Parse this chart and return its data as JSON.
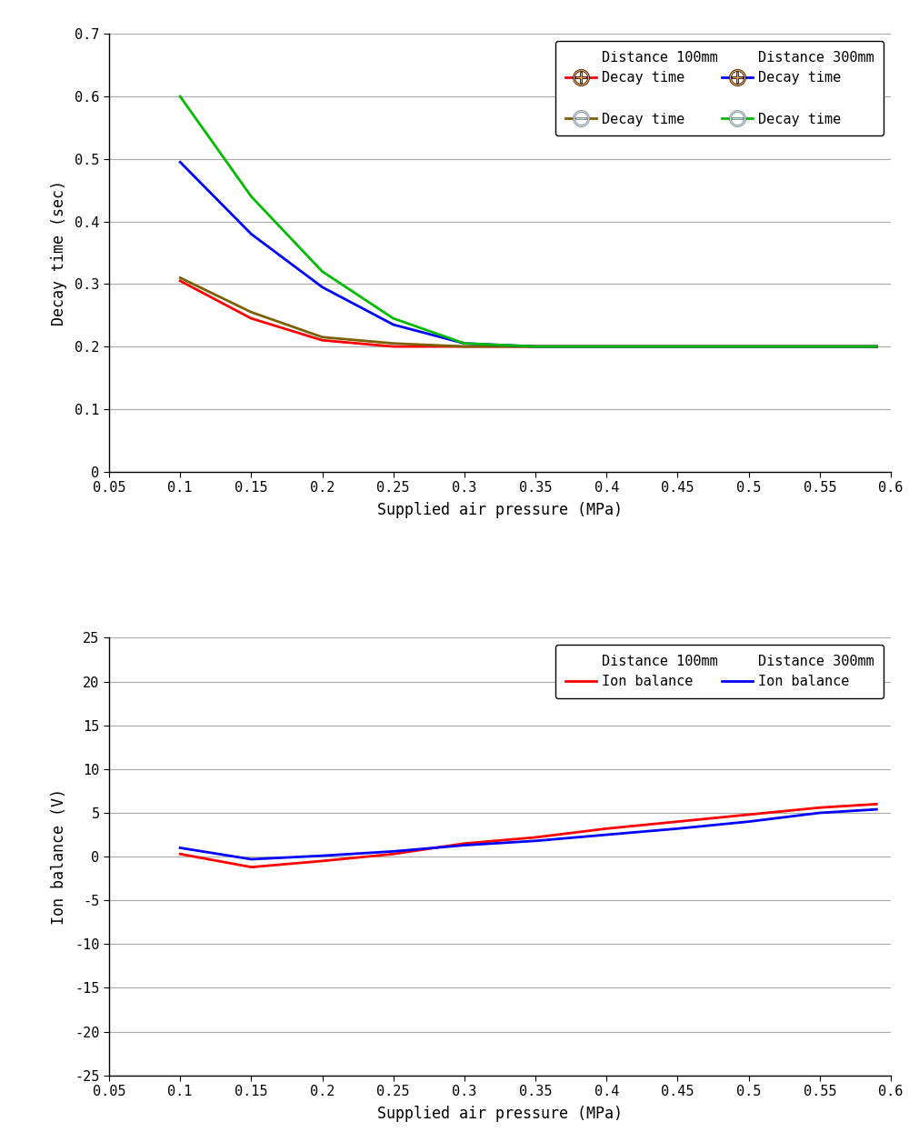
{
  "chart1": {
    "xlabel": "Supplied air pressure (MPa)",
    "ylabel": "Decay time (sec)",
    "xlim": [
      0.05,
      0.6
    ],
    "ylim": [
      0,
      0.7
    ],
    "xticks": [
      0.05,
      0.1,
      0.15,
      0.2,
      0.25,
      0.3,
      0.35,
      0.4,
      0.45,
      0.5,
      0.55,
      0.6
    ],
    "yticks": [
      0,
      0.1,
      0.2,
      0.3,
      0.4,
      0.5,
      0.6,
      0.7
    ],
    "xtick_labels": [
      "0.05",
      "0.1",
      "0.15",
      "0.2",
      "0.25",
      "0.3",
      "0.35",
      "0.4",
      "0.45",
      "0.5",
      "0.55",
      "0.6"
    ],
    "ytick_labels": [
      "0",
      "0.1",
      "0.2",
      "0.3",
      "0.4",
      "0.5",
      "0.6",
      "0.7"
    ],
    "series": {
      "d100_pos": {
        "x": [
          0.1,
          0.15,
          0.2,
          0.25,
          0.3,
          0.35,
          0.4,
          0.45,
          0.5,
          0.55,
          0.59
        ],
        "y": [
          0.305,
          0.245,
          0.21,
          0.2,
          0.2,
          0.2,
          0.2,
          0.2,
          0.2,
          0.2,
          0.2
        ],
        "color": "#FF0000"
      },
      "d100_neg": {
        "x": [
          0.1,
          0.15,
          0.2,
          0.25,
          0.3,
          0.35,
          0.4,
          0.45,
          0.5,
          0.55,
          0.59
        ],
        "y": [
          0.31,
          0.255,
          0.215,
          0.205,
          0.2,
          0.2,
          0.2,
          0.2,
          0.2,
          0.2,
          0.2
        ],
        "color": "#7B6000"
      },
      "d300_pos": {
        "x": [
          0.1,
          0.15,
          0.2,
          0.25,
          0.3,
          0.35,
          0.4,
          0.45,
          0.5,
          0.55,
          0.59
        ],
        "y": [
          0.495,
          0.38,
          0.295,
          0.235,
          0.205,
          0.2,
          0.2,
          0.2,
          0.2,
          0.2,
          0.2
        ],
        "color": "#0000FF"
      },
      "d300_neg": {
        "x": [
          0.1,
          0.15,
          0.2,
          0.25,
          0.3,
          0.35,
          0.4,
          0.45,
          0.5,
          0.55,
          0.59
        ],
        "y": [
          0.6,
          0.44,
          0.32,
          0.245,
          0.205,
          0.2,
          0.2,
          0.2,
          0.2,
          0.2,
          0.2
        ],
        "color": "#00BB00"
      }
    },
    "legend": {
      "dist100_label": "Distance 100mm",
      "dist300_label": "Distance 300mm",
      "pos_label": "Decay time",
      "neg_label": "Decay time",
      "plus_fill": "#FFA040",
      "minus_fill": "#B8D8E8",
      "plus_edge": "#000000",
      "minus_edge": "#888888"
    }
  },
  "chart2": {
    "xlabel": "Supplied air pressure (MPa)",
    "ylabel": "Ion balance (V)",
    "xlim": [
      0.05,
      0.6
    ],
    "ylim": [
      -25,
      25
    ],
    "xticks": [
      0.05,
      0.1,
      0.15,
      0.2,
      0.25,
      0.3,
      0.35,
      0.4,
      0.45,
      0.5,
      0.55,
      0.6
    ],
    "yticks": [
      -25,
      -20,
      -15,
      -10,
      -5,
      0,
      5,
      10,
      15,
      20,
      25
    ],
    "xtick_labels": [
      "0.05",
      "0.1",
      "0.15",
      "0.2",
      "0.25",
      "0.3",
      "0.35",
      "0.4",
      "0.45",
      "0.5",
      "0.55",
      "0.6"
    ],
    "ytick_labels": [
      "-25",
      "-20",
      "-15",
      "-10",
      "-5",
      "0",
      "5",
      "10",
      "15",
      "20",
      "25"
    ],
    "series": {
      "d100_ion": {
        "x": [
          0.1,
          0.15,
          0.2,
          0.25,
          0.3,
          0.35,
          0.4,
          0.45,
          0.5,
          0.55,
          0.59
        ],
        "y": [
          0.3,
          -1.2,
          -0.5,
          0.3,
          1.5,
          2.2,
          3.2,
          4.0,
          4.8,
          5.6,
          6.0
        ],
        "color": "#FF0000"
      },
      "d300_ion": {
        "x": [
          0.1,
          0.15,
          0.2,
          0.25,
          0.3,
          0.35,
          0.4,
          0.45,
          0.5,
          0.55,
          0.59
        ],
        "y": [
          1.0,
          -0.3,
          0.1,
          0.6,
          1.3,
          1.8,
          2.5,
          3.2,
          4.0,
          5.0,
          5.4
        ],
        "color": "#0000FF"
      }
    },
    "legend": {
      "dist100_label": "Distance 100mm",
      "dist300_label": "Distance 300mm",
      "ion_label": "Ion balance"
    }
  },
  "font_family": "monospace",
  "font_size_label": 12,
  "font_size_tick": 11,
  "font_size_legend": 11,
  "grid_color": "#AAAAAA",
  "grid_linewidth": 0.8
}
